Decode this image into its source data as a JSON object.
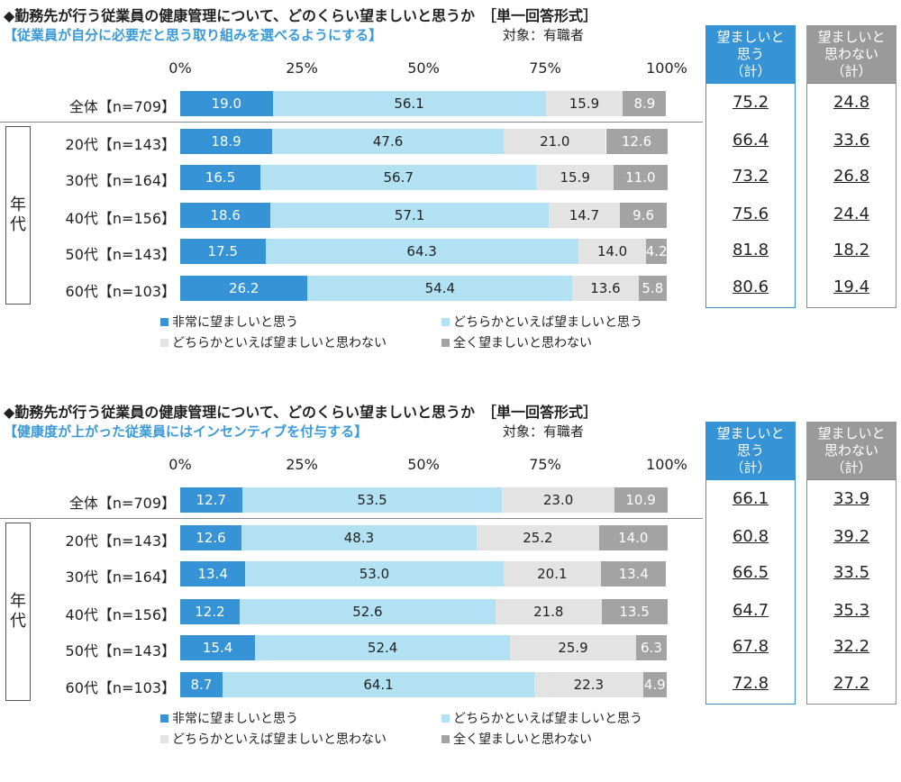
{
  "chart_data": [
    {
      "type": "bar",
      "orientation": "horizontal",
      "stacked": true,
      "title": "◆勤務先が行う従業員の健康管理について、どのくらい望ましいと思うか　［単一回答形式］",
      "subtitle": "【従業員が自分に必要だと思う取り組みを選べるようにする】",
      "target": "対象：有職者",
      "xlim": [
        0,
        100
      ],
      "x_ticks": [
        "0%",
        "25%",
        "50%",
        "75%",
        "100%"
      ],
      "group_label": "年代",
      "categories": [
        "全体【n=709】",
        "20代【n=143】",
        "30代【n=164】",
        "40代【n=156】",
        "50代【n=143】",
        "60代【n=103】"
      ],
      "series": [
        {
          "name": "非常に望ましいと思う",
          "color": "#3593d6",
          "values": [
            19.0,
            18.9,
            16.5,
            18.6,
            17.5,
            26.2
          ]
        },
        {
          "name": "どちらかといえば望ましいと思う",
          "color": "#b1e1f2",
          "values": [
            56.1,
            47.6,
            56.7,
            57.1,
            64.3,
            54.4
          ]
        },
        {
          "name": "どちらかといえば望ましいと思わない",
          "color": "#e3e3e3",
          "values": [
            15.9,
            21.0,
            15.9,
            14.7,
            14.0,
            13.6
          ]
        },
        {
          "name": "全く望ましいと思わない",
          "color": "#a3a3a3",
          "values": [
            8.9,
            12.6,
            11.0,
            9.6,
            4.2,
            5.8
          ]
        }
      ],
      "summary_headers": [
        "望ましいと\n思う\n（計）",
        "望ましいと\n思わない\n（計）"
      ],
      "summary_desirable": [
        "75.2",
        "66.4",
        "73.2",
        "75.6",
        "81.8",
        "80.6"
      ],
      "summary_undesirable": [
        "24.8",
        "33.6",
        "26.8",
        "24.4",
        "18.2",
        "19.4"
      ],
      "grid": false,
      "legend_position": "bottom"
    },
    {
      "type": "bar",
      "orientation": "horizontal",
      "stacked": true,
      "title": "◆勤務先が行う従業員の健康管理について、どのくらい望ましいと思うか　［単一回答形式］",
      "subtitle": "【健康度が上がった従業員にはインセンティブを付与する】",
      "target": "対象：有職者",
      "xlim": [
        0,
        100
      ],
      "x_ticks": [
        "0%",
        "25%",
        "50%",
        "75%",
        "100%"
      ],
      "group_label": "年代",
      "categories": [
        "全体【n=709】",
        "20代【n=143】",
        "30代【n=164】",
        "40代【n=156】",
        "50代【n=143】",
        "60代【n=103】"
      ],
      "series": [
        {
          "name": "非常に望ましいと思う",
          "color": "#3593d6",
          "values": [
            12.7,
            12.6,
            13.4,
            12.2,
            15.4,
            8.7
          ]
        },
        {
          "name": "どちらかといえば望ましいと思う",
          "color": "#b1e1f2",
          "values": [
            53.5,
            48.3,
            53.0,
            52.6,
            52.4,
            64.1
          ]
        },
        {
          "name": "どちらかといえば望ましいと思わない",
          "color": "#e3e3e3",
          "values": [
            23.0,
            25.2,
            20.1,
            21.8,
            25.9,
            22.3
          ]
        },
        {
          "name": "全く望ましいと思わない",
          "color": "#a3a3a3",
          "values": [
            10.9,
            14.0,
            13.4,
            13.5,
            6.3,
            4.9
          ]
        }
      ],
      "summary_headers": [
        "望ましいと\n思う\n（計）",
        "望ましいと\n思わない\n（計）"
      ],
      "summary_desirable": [
        "66.1",
        "60.8",
        "66.5",
        "64.7",
        "67.8",
        "72.8"
      ],
      "summary_undesirable": [
        "33.9",
        "39.2",
        "33.5",
        "35.3",
        "32.2",
        "27.2"
      ],
      "grid": false,
      "legend_position": "bottom"
    }
  ]
}
